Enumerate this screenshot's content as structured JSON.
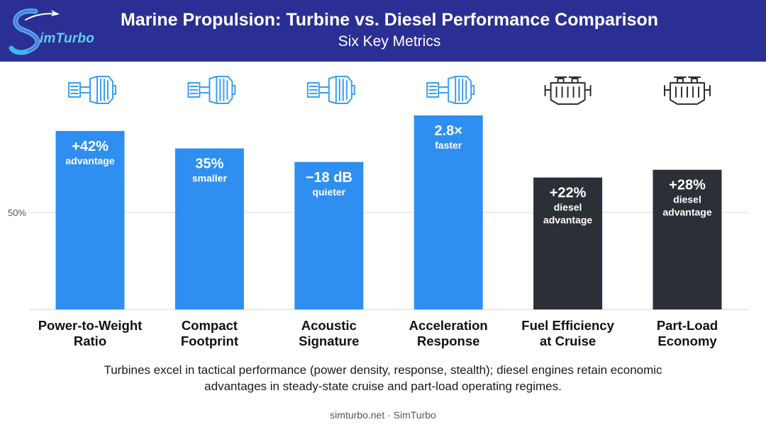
{
  "header": {
    "title": "Marine Propulsion: Turbine vs. Diesel Performance Comparison",
    "subtitle": "Six Key Metrics",
    "logo_text": "imTurbo",
    "background": "#2b2f93"
  },
  "chart_data": {
    "type": "bar",
    "categories": [
      [
        "Power-to-Weight",
        "Ratio"
      ],
      [
        "Compact",
        "Footprint"
      ],
      [
        "Acoustic",
        "Signature"
      ],
      [
        "Acceleration",
        "Response"
      ],
      [
        "Fuel Efficiency",
        "at Cruise"
      ],
      [
        "Part-Load",
        "Economy"
      ]
    ],
    "values": [
      92,
      83,
      76,
      100,
      68,
      72
    ],
    "data_labels": [
      {
        "main": "+42%",
        "sub": [
          "advantage"
        ]
      },
      {
        "main": "35%",
        "sub": [
          "smaller"
        ]
      },
      {
        "main": "−18 dB",
        "sub": [
          "quieter"
        ]
      },
      {
        "main": "2.8×",
        "sub": [
          "faster"
        ]
      },
      {
        "main": "+22%",
        "sub": [
          "diesel",
          "advantage"
        ]
      },
      {
        "main": "+28%",
        "sub": [
          "diesel",
          "advantage"
        ]
      }
    ],
    "icons": [
      "turbine-icon",
      "turbine-icon",
      "turbine-icon",
      "turbine-icon",
      "diesel-engine-icon",
      "diesel-engine-icon"
    ],
    "colors": [
      "#2f8ff0",
      "#2f8ff0",
      "#2f8ff0",
      "#2f8ff0",
      "#2b3036",
      "#2b3036"
    ],
    "y_gridline": {
      "value": 50,
      "label": "50%"
    },
    "ylim": [
      0,
      100
    ],
    "grid": true
  },
  "caption": "Turbines excel in tactical performance (power density, response, stealth); diesel engines retain economic advantages in steady-state cruise and part-load operating regimes.",
  "footer": "simturbo.net · SimTurbo"
}
